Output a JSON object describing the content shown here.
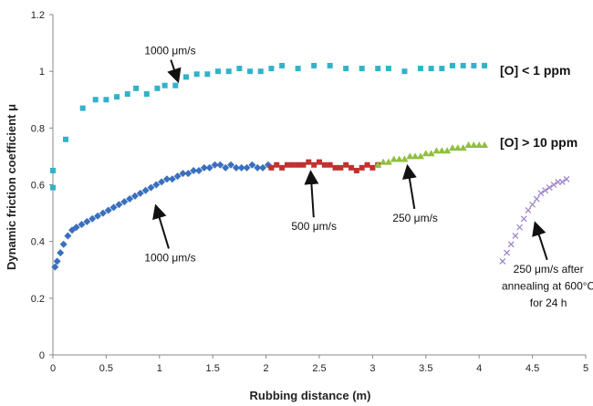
{
  "chart_data": {
    "type": "scatter",
    "xlabel": "Rubbing distance (m)",
    "ylabel": "Dynamic friction coefficient μ",
    "xlim": [
      0,
      5
    ],
    "ylim": [
      0,
      1.2
    ],
    "xticks": [
      "0",
      "0.5",
      "1",
      "1.5",
      "2",
      "2.5",
      "3",
      "3.5",
      "4",
      "4.5",
      "5"
    ],
    "yticks": [
      "0",
      "0.2",
      "0.4",
      "0.6",
      "0.8",
      "1",
      "1.2"
    ],
    "grid": false,
    "series": [
      {
        "marker": "square",
        "color": "#31b3c9",
        "points": [
          [
            0.0,
            0.65
          ],
          [
            0.0,
            0.59
          ],
          [
            0.12,
            0.76
          ],
          [
            0.28,
            0.87
          ],
          [
            0.4,
            0.9
          ],
          [
            0.5,
            0.9
          ],
          [
            0.6,
            0.91
          ],
          [
            0.7,
            0.92
          ],
          [
            0.78,
            0.94
          ],
          [
            0.88,
            0.92
          ],
          [
            0.98,
            0.94
          ],
          [
            1.05,
            0.95
          ],
          [
            1.15,
            0.95
          ],
          [
            1.25,
            0.98
          ],
          [
            1.35,
            0.99
          ],
          [
            1.45,
            0.99
          ],
          [
            1.55,
            1.0
          ],
          [
            1.65,
            1.0
          ],
          [
            1.75,
            1.01
          ],
          [
            1.85,
            1.0
          ],
          [
            1.95,
            1.0
          ],
          [
            2.05,
            1.01
          ],
          [
            2.15,
            1.02
          ],
          [
            2.3,
            1.01
          ],
          [
            2.45,
            1.02
          ],
          [
            2.6,
            1.02
          ],
          [
            2.75,
            1.01
          ],
          [
            2.9,
            1.01
          ],
          [
            3.05,
            1.01
          ],
          [
            3.15,
            1.01
          ],
          [
            3.3,
            1.0
          ],
          [
            3.45,
            1.01
          ],
          [
            3.55,
            1.01
          ],
          [
            3.65,
            1.01
          ],
          [
            3.75,
            1.02
          ],
          [
            3.85,
            1.02
          ],
          [
            3.95,
            1.02
          ],
          [
            4.05,
            1.02
          ]
        ]
      },
      {
        "marker": "diamond",
        "color": "#3a6fbf",
        "points": [
          [
            0.02,
            0.31
          ],
          [
            0.04,
            0.33
          ],
          [
            0.07,
            0.36
          ],
          [
            0.1,
            0.39
          ],
          [
            0.14,
            0.42
          ],
          [
            0.18,
            0.44
          ],
          [
            0.22,
            0.45
          ],
          [
            0.27,
            0.46
          ],
          [
            0.32,
            0.47
          ],
          [
            0.37,
            0.48
          ],
          [
            0.42,
            0.49
          ],
          [
            0.47,
            0.5
          ],
          [
            0.52,
            0.51
          ],
          [
            0.57,
            0.52
          ],
          [
            0.62,
            0.53
          ],
          [
            0.67,
            0.54
          ],
          [
            0.72,
            0.55
          ],
          [
            0.77,
            0.56
          ],
          [
            0.82,
            0.57
          ],
          [
            0.87,
            0.58
          ],
          [
            0.92,
            0.59
          ],
          [
            0.97,
            0.6
          ],
          [
            1.02,
            0.61
          ],
          [
            1.07,
            0.62
          ],
          [
            1.12,
            0.62
          ],
          [
            1.17,
            0.63
          ],
          [
            1.22,
            0.64
          ],
          [
            1.27,
            0.64
          ],
          [
            1.32,
            0.65
          ],
          [
            1.37,
            0.65
          ],
          [
            1.42,
            0.66
          ],
          [
            1.47,
            0.66
          ],
          [
            1.52,
            0.67
          ],
          [
            1.57,
            0.67
          ],
          [
            1.62,
            0.66
          ],
          [
            1.67,
            0.67
          ],
          [
            1.72,
            0.66
          ],
          [
            1.77,
            0.66
          ],
          [
            1.82,
            0.66
          ],
          [
            1.87,
            0.67
          ],
          [
            1.92,
            0.66
          ],
          [
            1.97,
            0.66
          ],
          [
            2.02,
            0.67
          ]
        ]
      },
      {
        "marker": "square",
        "color": "#c0312f",
        "points": [
          [
            2.05,
            0.66
          ],
          [
            2.1,
            0.67
          ],
          [
            2.15,
            0.66
          ],
          [
            2.2,
            0.67
          ],
          [
            2.25,
            0.67
          ],
          [
            2.3,
            0.67
          ],
          [
            2.35,
            0.67
          ],
          [
            2.4,
            0.68
          ],
          [
            2.45,
            0.67
          ],
          [
            2.5,
            0.68
          ],
          [
            2.55,
            0.67
          ],
          [
            2.6,
            0.67
          ],
          [
            2.65,
            0.66
          ],
          [
            2.7,
            0.66
          ],
          [
            2.75,
            0.67
          ],
          [
            2.8,
            0.66
          ],
          [
            2.85,
            0.65
          ],
          [
            2.9,
            0.66
          ],
          [
            2.95,
            0.67
          ],
          [
            3.0,
            0.66
          ],
          [
            3.05,
            0.67
          ]
        ]
      },
      {
        "marker": "triangle",
        "color": "#8fbf3f",
        "points": [
          [
            3.05,
            0.67
          ],
          [
            3.1,
            0.68
          ],
          [
            3.15,
            0.68
          ],
          [
            3.2,
            0.69
          ],
          [
            3.25,
            0.69
          ],
          [
            3.3,
            0.69
          ],
          [
            3.35,
            0.7
          ],
          [
            3.4,
            0.7
          ],
          [
            3.45,
            0.7
          ],
          [
            3.5,
            0.71
          ],
          [
            3.55,
            0.71
          ],
          [
            3.6,
            0.72
          ],
          [
            3.65,
            0.72
          ],
          [
            3.7,
            0.72
          ],
          [
            3.75,
            0.73
          ],
          [
            3.8,
            0.73
          ],
          [
            3.85,
            0.73
          ],
          [
            3.9,
            0.74
          ],
          [
            3.95,
            0.74
          ],
          [
            4.0,
            0.74
          ],
          [
            4.05,
            0.74
          ]
        ]
      },
      {
        "marker": "cross",
        "color": "#9a7fc8",
        "points": [
          [
            4.22,
            0.33
          ],
          [
            4.26,
            0.36
          ],
          [
            4.3,
            0.39
          ],
          [
            4.34,
            0.42
          ],
          [
            4.38,
            0.45
          ],
          [
            4.42,
            0.48
          ],
          [
            4.46,
            0.51
          ],
          [
            4.5,
            0.53
          ],
          [
            4.54,
            0.55
          ],
          [
            4.58,
            0.57
          ],
          [
            4.62,
            0.58
          ],
          [
            4.66,
            0.59
          ],
          [
            4.7,
            0.6
          ],
          [
            4.74,
            0.61
          ],
          [
            4.78,
            0.61
          ],
          [
            4.82,
            0.62
          ]
        ]
      }
    ],
    "annotations": [
      {
        "text": "1000 μm/s",
        "x": 1.1,
        "y": 1.06,
        "arrow_to": [
          1.17,
          0.97
        ]
      },
      {
        "text": "1000 μm/s",
        "x": 1.1,
        "y": 0.33,
        "arrow_to": [
          0.97,
          0.52
        ]
      },
      {
        "text": "500 μm/s",
        "x": 2.45,
        "y": 0.44,
        "arrow_to": [
          2.42,
          0.64
        ]
      },
      {
        "text": "250 μm/s",
        "x": 3.4,
        "y": 0.47,
        "arrow_to": [
          3.33,
          0.66
        ]
      },
      {
        "text": "250 μm/s after",
        "x": 4.65,
        "y": 0.29,
        "arrow_to": [
          4.53,
          0.46
        ]
      },
      {
        "text": "annealing at 600°C",
        "x": 4.65,
        "y": 0.23
      },
      {
        "text": "for 24 h",
        "x": 4.65,
        "y": 0.17
      }
    ],
    "series_labels": [
      "[O] < 1 ppm",
      "[O] > 10 ppm"
    ]
  }
}
